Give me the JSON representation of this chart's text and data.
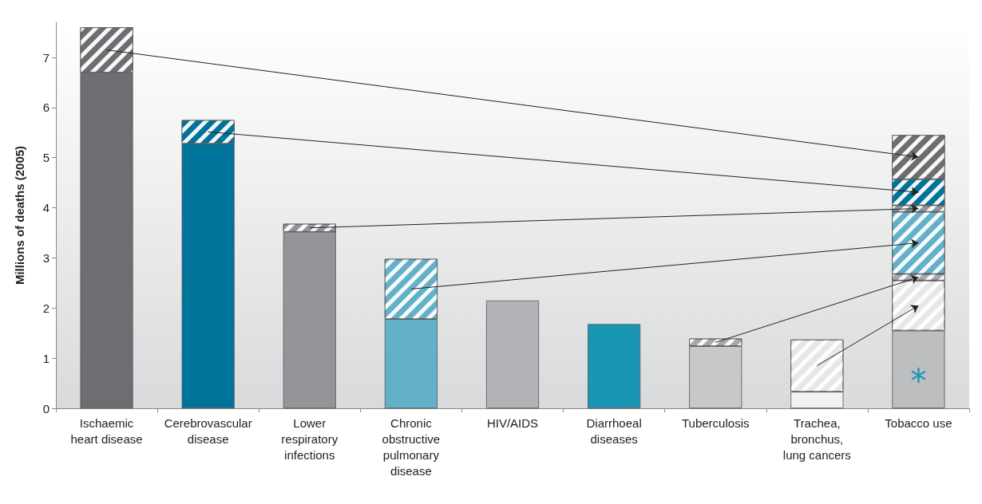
{
  "chart_data": {
    "type": "bar",
    "stacked": true,
    "ylabel": "Millions of deaths (2005)",
    "categories": [
      "Ischaemic\nheart disease",
      "Cerebrovascular\ndisease",
      "Lower\nrespiratory\ninfections",
      "Chronic\nobstructive\npulmonary\ndisease",
      "HIV/AIDS",
      "Diarrhoeal\ndiseases",
      "Tuberculosis",
      "Trachea,\nbronchus,\nlung cancers",
      "Tobacco use"
    ],
    "ylim": [
      0,
      7.7
    ],
    "yticks": [
      0,
      1,
      2,
      3,
      4,
      5,
      6,
      7
    ],
    "grid": false,
    "series": [
      {
        "colors": [
          "#6d6e71",
          "#00739a",
          "#939598",
          "#63b1c8",
          "#b1b3b6",
          "#1996b3",
          "#c7c8ca",
          "#f2f2f2",
          "#bcbec0"
        ],
        "values": [
          6.7,
          5.28,
          3.52,
          1.78,
          2.15,
          1.68,
          1.24,
          0.33,
          1.55
        ]
      },
      {
        "colors": [
          "#6d6e71",
          "#00739a",
          "#939598",
          "#63b1c8",
          null,
          null,
          "#a7a9ac",
          "#e6e7e8",
          null
        ],
        "values": [
          0.9,
          0.47,
          0.16,
          1.2,
          null,
          null,
          0.15,
          1.04,
          null
        ]
      },
      {
        "color": "#e6e7e8",
        "values": [
          null,
          null,
          null,
          null,
          null,
          null,
          null,
          null,
          1.0
        ]
      },
      {
        "color": "#a7a9ac",
        "values": [
          null,
          null,
          null,
          null,
          null,
          null,
          null,
          null,
          0.13
        ]
      },
      {
        "color": "#63b1c8",
        "values": [
          null,
          null,
          null,
          null,
          null,
          null,
          null,
          null,
          1.24
        ]
      },
      {
        "color": "#939598",
        "values": [
          null,
          null,
          null,
          null,
          null,
          null,
          null,
          null,
          0.13
        ]
      },
      {
        "color": "#00739a",
        "values": [
          null,
          null,
          null,
          null,
          null,
          null,
          null,
          null,
          0.52
        ]
      },
      {
        "color": "#6d6e71",
        "values": [
          null,
          null,
          null,
          null,
          null,
          null,
          null,
          null,
          0.88
        ]
      }
    ],
    "annotations": [
      "*"
    ]
  }
}
